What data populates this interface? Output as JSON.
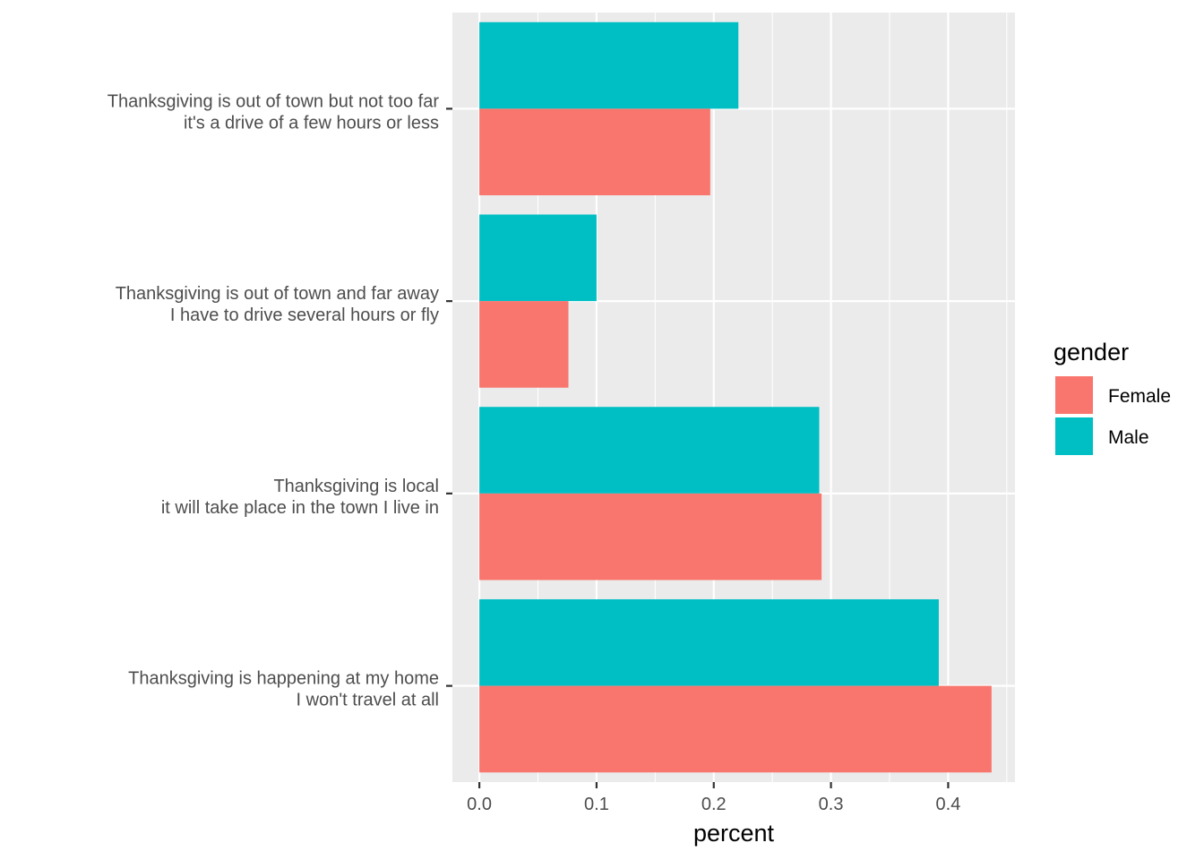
{
  "chart_data": {
    "type": "bar",
    "orientation": "horizontal",
    "categories": [
      [
        "Thanksgiving is out of town but not too far",
        "it's a drive of a few hours or less"
      ],
      [
        "Thanksgiving is out of town and far away",
        "I have to drive several hours or fly"
      ],
      [
        "Thanksgiving is local",
        "it will take place in the town I live in"
      ],
      [
        "Thanksgiving is happening at my home",
        "I won't travel at all"
      ]
    ],
    "series": [
      {
        "name": "Female",
        "color": "#F8766D",
        "values": [
          0.197,
          0.076,
          0.292,
          0.437
        ]
      },
      {
        "name": "Male",
        "color": "#00BFC4",
        "values": [
          0.221,
          0.1,
          0.29,
          0.392
        ]
      }
    ],
    "xlabel": "percent",
    "ylabel": "",
    "xlim": [
      -0.023,
      0.457
    ],
    "xticks": [
      "0.0",
      "0.1",
      "0.2",
      "0.3",
      "0.4"
    ],
    "grid": true,
    "panel_background": "#EBEBEB",
    "legend": {
      "title": "gender",
      "position": "right",
      "items": [
        "Female",
        "Male"
      ]
    }
  }
}
